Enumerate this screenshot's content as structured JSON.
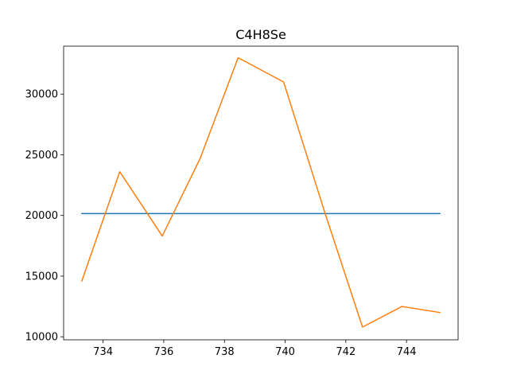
{
  "chart_data": {
    "type": "line",
    "title": "C4H8Se",
    "xlabel": "",
    "ylabel": "",
    "xlim": [
      732.7,
      745.7
    ],
    "ylim": [
      9750,
      33950
    ],
    "grid": false,
    "x_ticks": [
      734,
      736,
      738,
      740,
      742,
      744
    ],
    "y_ticks": [
      10000,
      15000,
      20000,
      25000,
      30000
    ],
    "series": [
      {
        "color": "#1f77b4",
        "x": [
          733.3,
          745.1
        ],
        "y": [
          20150,
          20150
        ]
      },
      {
        "color": "#ff7f0e",
        "x": [
          733.3,
          734.55,
          735.95,
          737.2,
          738.45,
          739.95,
          741.3,
          742.55,
          743.85,
          745.1
        ],
        "y": [
          14600,
          23600,
          18300,
          24700,
          33000,
          31000,
          20300,
          10800,
          12500,
          12000
        ]
      }
    ]
  }
}
